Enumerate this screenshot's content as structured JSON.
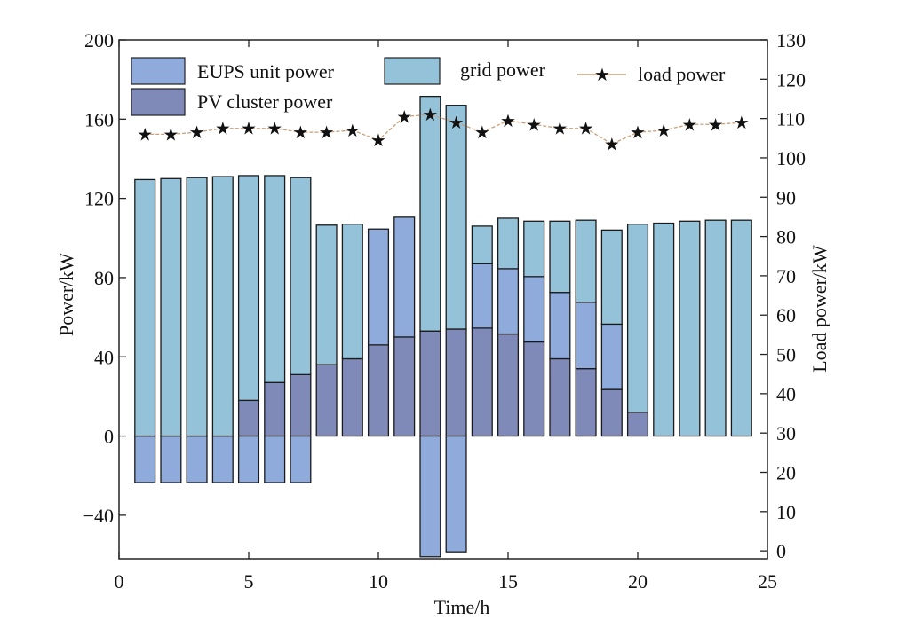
{
  "chart_data": {
    "type": "bar",
    "stacked": true,
    "xlabel": "Time/h",
    "ylabel": "Power/kW",
    "y2label": "Load power/kW",
    "xlim": [
      0,
      25
    ],
    "ylim": [
      -62,
      200
    ],
    "y2lim": [
      -2,
      130
    ],
    "xticks": [
      0,
      5,
      10,
      15,
      20,
      25
    ],
    "yticks": [
      -40,
      0,
      40,
      80,
      120,
      160,
      200
    ],
    "y2ticks": [
      0,
      10,
      20,
      30,
      40,
      50,
      60,
      70,
      80,
      90,
      100,
      110,
      120,
      130
    ],
    "x": [
      1,
      2,
      3,
      4,
      5,
      6,
      7,
      8,
      9,
      10,
      11,
      12,
      13,
      14,
      15,
      16,
      17,
      18,
      19,
      20,
      21,
      22,
      23,
      24
    ],
    "series": [
      {
        "name": "PV cluster power",
        "axis": "left",
        "color": "#7f8ab9",
        "values": [
          0,
          0,
          0,
          0,
          18,
          27,
          31,
          36,
          39,
          46,
          50,
          53,
          54,
          54.5,
          51.5,
          47.5,
          39,
          34,
          23.5,
          12,
          0,
          0,
          0,
          0
        ]
      },
      {
        "name": "EUPS unit power",
        "axis": "left",
        "color": "#8fabdb",
        "values": [
          -23.5,
          -23.5,
          -23.5,
          -23.5,
          -23.5,
          -23.5,
          -23.5,
          0,
          0,
          58.5,
          60.5,
          -61,
          -58.5,
          32.5,
          33,
          33,
          33.5,
          33.5,
          33,
          0,
          0,
          0,
          0,
          0
        ]
      },
      {
        "name": "grid power",
        "axis": "left",
        "color": "#94c2d8",
        "values": [
          129.5,
          130,
          130.5,
          131,
          113.5,
          104.5,
          99.5,
          70.5,
          68,
          0,
          0,
          118.5,
          113,
          19,
          25.5,
          28,
          36,
          41.5,
          47.5,
          95,
          107.5,
          108.5,
          109,
          109
        ]
      },
      {
        "name": "load power",
        "axis": "right",
        "color": "#a07a4c",
        "values": [
          106,
          106,
          106.5,
          107.5,
          107.5,
          107.5,
          106.5,
          106.5,
          107,
          104.5,
          110.5,
          111,
          109,
          106.5,
          109.5,
          108.5,
          107.5,
          107.5,
          103.5,
          106.5,
          107,
          108.5,
          108.5,
          109
        ]
      }
    ],
    "legend": {
      "placement": "top",
      "labels": [
        "EUPS unit power",
        "grid power",
        "load power",
        "PV cluster power"
      ]
    }
  }
}
